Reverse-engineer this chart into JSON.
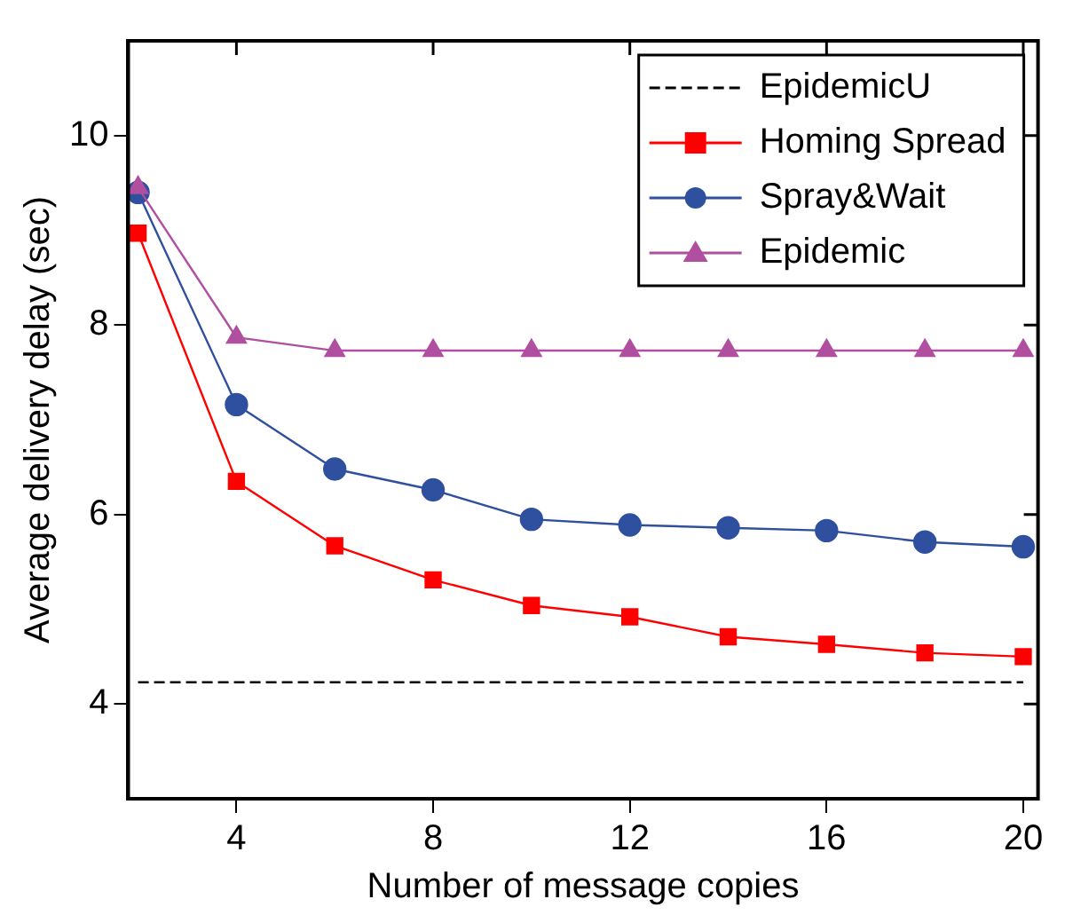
{
  "chart_data": {
    "type": "line",
    "xlabel": "Number of message copies",
    "ylabel": "Average delivery delay (sec)",
    "x": [
      2,
      4,
      6,
      8,
      10,
      12,
      14,
      16,
      18,
      20
    ],
    "xlim": [
      1.8,
      20.3
    ],
    "xticks": [
      4,
      8,
      12,
      16,
      20
    ],
    "ylim": [
      3,
      11
    ],
    "yticks": [
      4,
      6,
      8,
      10
    ],
    "grid": false,
    "legend": "top right",
    "series": [
      {
        "name": "EpidemicU",
        "color": "#000000",
        "marker": "none",
        "line_style": "dashed",
        "values": [
          4.23,
          4.23,
          4.23,
          4.23,
          4.23,
          4.23,
          4.23,
          4.23,
          4.23,
          4.23
        ]
      },
      {
        "name": "Homing Spread",
        "color": "#ff0000",
        "marker": "square",
        "values": [
          8.97,
          6.35,
          5.67,
          5.31,
          5.04,
          4.92,
          4.71,
          4.63,
          4.54,
          4.5
        ]
      },
      {
        "name": "Spray&Wait",
        "color": "#2f4f9f",
        "marker": "circle",
        "values": [
          9.4,
          7.16,
          6.48,
          6.26,
          5.95,
          5.89,
          5.86,
          5.83,
          5.71,
          5.66
        ]
      },
      {
        "name": "Epidemic",
        "color": "#b04fa0",
        "marker": "triangle",
        "values": [
          9.45,
          7.87,
          7.73,
          7.73,
          7.73,
          7.73,
          7.73,
          7.73,
          7.73,
          7.73
        ]
      }
    ]
  }
}
